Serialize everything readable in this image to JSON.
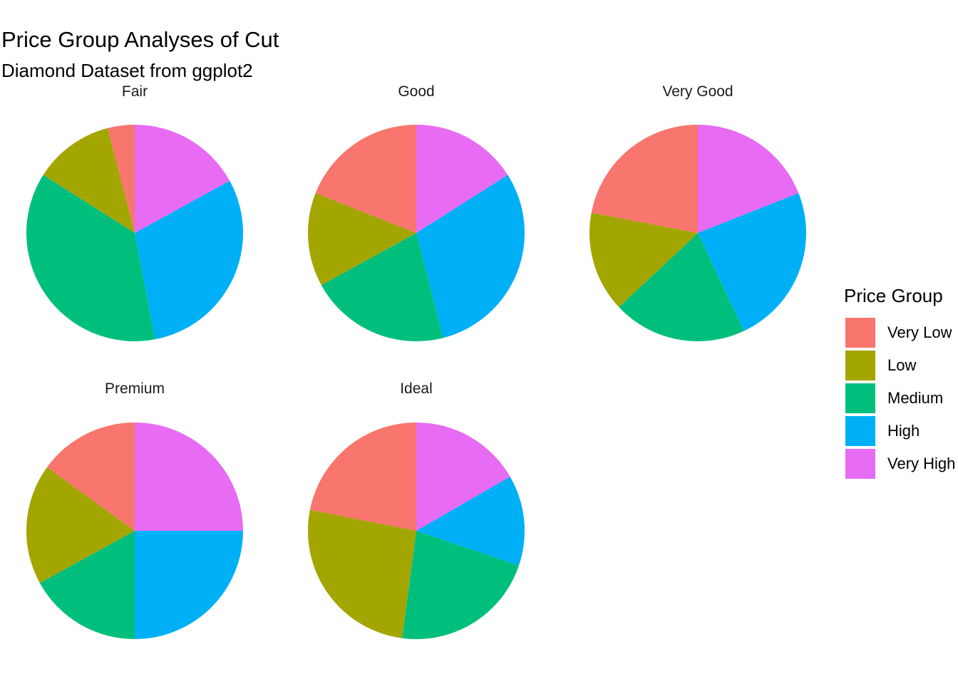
{
  "chart_data": {
    "type": "pie",
    "title": "Price Group Analyses of Cut",
    "subtitle": "Diamond Dataset from ggplot2",
    "legend": {
      "title": "Price Group",
      "position": "right",
      "entries": [
        {
          "label": "Very Low",
          "color": "#F8766D"
        },
        {
          "label": "Low",
          "color": "#A3A500"
        },
        {
          "label": "Medium",
          "color": "#00BF7D"
        },
        {
          "label": "High",
          "color": "#00B0F6"
        },
        {
          "label": "Very High",
          "color": "#E76BF3"
        }
      ]
    },
    "categories": [
      "Very Low",
      "Low",
      "Medium",
      "High",
      "Very High"
    ],
    "facets": [
      {
        "label": "Fair",
        "values": [
          0.04,
          0.12,
          0.37,
          0.3,
          0.17
        ]
      },
      {
        "label": "Good",
        "values": [
          0.19,
          0.14,
          0.21,
          0.3,
          0.16
        ]
      },
      {
        "label": "Very Good",
        "values": [
          0.22,
          0.15,
          0.2,
          0.24,
          0.19
        ]
      },
      {
        "label": "Premium",
        "values": [
          0.15,
          0.18,
          0.17,
          0.25,
          0.25
        ]
      },
      {
        "label": "Ideal",
        "values": [
          0.21,
          0.25,
          0.21,
          0.13,
          0.16
        ]
      }
    ]
  }
}
